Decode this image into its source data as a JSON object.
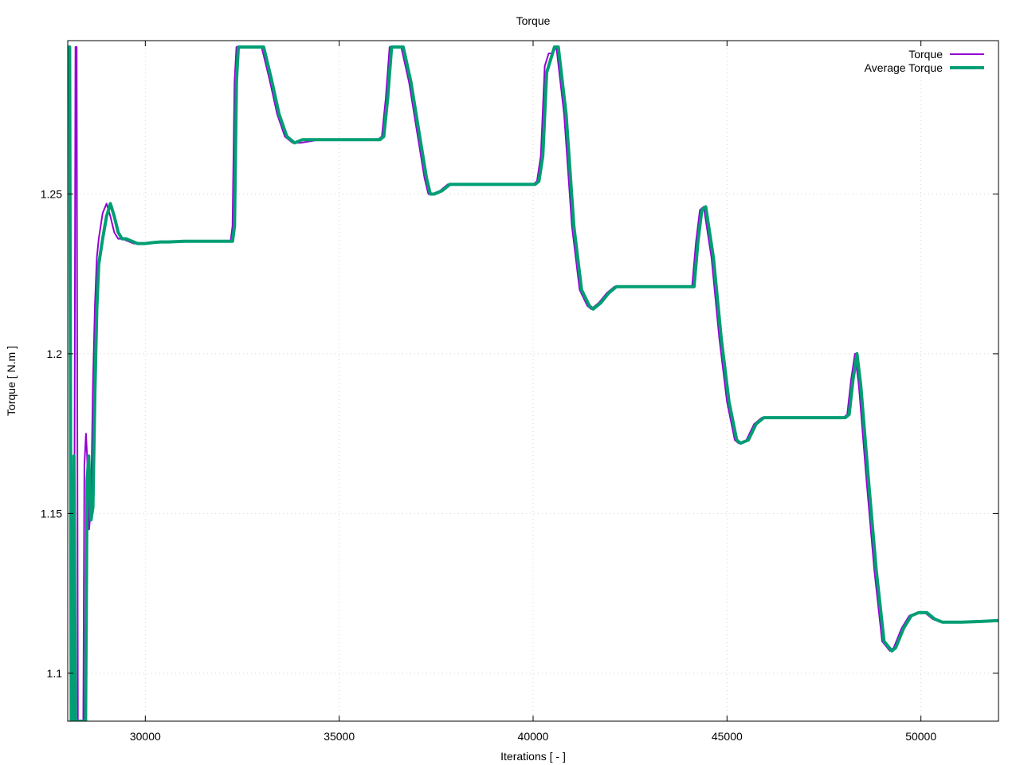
{
  "chart_data": {
    "type": "line",
    "title": "Torque",
    "xlabel": "Iterations [ - ]",
    "ylabel": "Torque [ N.m ]",
    "xlim": [
      28000,
      52000
    ],
    "ylim": [
      1.085,
      1.298
    ],
    "x_ticks": [
      30000,
      35000,
      40000,
      45000,
      50000
    ],
    "y_ticks": [
      1.1,
      1.15,
      1.2,
      1.25
    ],
    "y_tick_labels": [
      "1.1",
      "1.15",
      "1.2",
      "1.25"
    ],
    "grid": true,
    "legend": "top-right",
    "series": [
      {
        "name": "Torque",
        "color": "#9400d3",
        "x": [
          28000,
          28030,
          28060,
          28100,
          28130,
          28160,
          28200,
          28230,
          28260,
          28300,
          28330,
          28360,
          28400,
          28430,
          28470,
          28500,
          28550,
          28600,
          28650,
          28700,
          28750,
          28800,
          28900,
          29000,
          29100,
          29200,
          29300,
          29400,
          29500,
          29600,
          29700,
          29800,
          30000,
          30200,
          30400,
          30600,
          31000,
          31500,
          32000,
          32200,
          32250,
          32300,
          32350,
          32400,
          32600,
          32800,
          33000,
          33200,
          33400,
          33600,
          33800,
          34000,
          34500,
          35000,
          35500,
          36000,
          36100,
          36200,
          36300,
          36400,
          36500,
          36600,
          36800,
          37000,
          37200,
          37300,
          37400,
          37600,
          37800,
          38000,
          38500,
          39000,
          39500,
          40000,
          40100,
          40200,
          40300,
          40400,
          40500,
          40600,
          40800,
          41000,
          41200,
          41400,
          41500,
          41700,
          41900,
          42100,
          43000,
          44000,
          44100,
          44200,
          44300,
          44400,
          44600,
          44800,
          45000,
          45200,
          45300,
          45500,
          45700,
          45900,
          46100,
          47000,
          48000,
          48100,
          48200,
          48300,
          48400,
          48600,
          48800,
          49000,
          49200,
          49300,
          49500,
          49700,
          49900,
          50100,
          50300,
          50500,
          50700,
          51000,
          51500,
          52000
        ],
        "y": [
          1.296,
          1.296,
          1.296,
          1.085,
          1.085,
          1.085,
          1.296,
          1.296,
          1.085,
          1.085,
          1.085,
          1.085,
          1.085,
          1.165,
          1.175,
          1.168,
          1.145,
          1.152,
          1.19,
          1.215,
          1.23,
          1.236,
          1.244,
          1.247,
          1.243,
          1.238,
          1.236,
          1.236,
          1.2355,
          1.235,
          1.2345,
          1.2345,
          1.2345,
          1.2348,
          1.235,
          1.235,
          1.2352,
          1.2352,
          1.2352,
          1.2352,
          1.24,
          1.285,
          1.296,
          1.296,
          1.296,
          1.296,
          1.296,
          1.286,
          1.275,
          1.268,
          1.266,
          1.266,
          1.267,
          1.267,
          1.267,
          1.267,
          1.268,
          1.28,
          1.296,
          1.296,
          1.296,
          1.296,
          1.285,
          1.27,
          1.255,
          1.25,
          1.25,
          1.251,
          1.253,
          1.253,
          1.253,
          1.253,
          1.253,
          1.253,
          1.254,
          1.262,
          1.29,
          1.294,
          1.294,
          1.296,
          1.275,
          1.24,
          1.22,
          1.215,
          1.214,
          1.216,
          1.219,
          1.221,
          1.221,
          1.221,
          1.221,
          1.235,
          1.245,
          1.246,
          1.23,
          1.205,
          1.185,
          1.173,
          1.172,
          1.173,
          1.178,
          1.18,
          1.18,
          1.18,
          1.18,
          1.181,
          1.192,
          1.2,
          1.19,
          1.16,
          1.132,
          1.11,
          1.107,
          1.108,
          1.114,
          1.118,
          1.119,
          1.119,
          1.117,
          1.116,
          1.116,
          1.116,
          1.1162,
          1.1165
        ]
      },
      {
        "name": "Average Torque",
        "color": "#009e73",
        "x": [
          28000,
          28050,
          28090,
          28130,
          28160,
          28200,
          28250,
          28300,
          28340,
          28380,
          28420,
          28460,
          28500,
          28540,
          28600,
          28650,
          28700,
          28750,
          28800,
          28900,
          29000,
          29100,
          29200,
          29300,
          29400,
          29500,
          29600,
          29700,
          29800,
          30000,
          30200,
          30400,
          30600,
          31000,
          31500,
          32000,
          32250,
          32300,
          32350,
          32400,
          32450,
          32650,
          32850,
          33050,
          33250,
          33450,
          33650,
          33850,
          34050,
          34550,
          35050,
          35550,
          36050,
          36150,
          36250,
          36350,
          36450,
          36550,
          36650,
          36850,
          37050,
          37250,
          37350,
          37450,
          37650,
          37850,
          38050,
          38550,
          39050,
          39550,
          40050,
          40150,
          40250,
          40350,
          40450,
          40550,
          40650,
          40850,
          41050,
          41250,
          41450,
          41550,
          41750,
          41950,
          42150,
          43050,
          44050,
          44150,
          44250,
          44350,
          44450,
          44650,
          44850,
          45050,
          45250,
          45350,
          45550,
          45750,
          45950,
          46150,
          47050,
          48050,
          48150,
          48250,
          48350,
          48450,
          48650,
          48850,
          49050,
          49250,
          49350,
          49550,
          49750,
          49950,
          50150,
          50350,
          50550,
          50750,
          51050,
          51550,
          52000
        ],
        "y": [
          1.296,
          1.296,
          1.085,
          1.085,
          1.168,
          1.085,
          1.085,
          1.085,
          1.085,
          1.085,
          1.085,
          1.085,
          1.16,
          1.168,
          1.148,
          1.152,
          1.188,
          1.214,
          1.228,
          1.236,
          1.243,
          1.247,
          1.243,
          1.238,
          1.236,
          1.236,
          1.2355,
          1.235,
          1.2345,
          1.2345,
          1.2348,
          1.235,
          1.235,
          1.2352,
          1.2352,
          1.2352,
          1.2352,
          1.24,
          1.285,
          1.296,
          1.296,
          1.296,
          1.296,
          1.296,
          1.286,
          1.275,
          1.268,
          1.266,
          1.267,
          1.267,
          1.267,
          1.267,
          1.267,
          1.268,
          1.28,
          1.296,
          1.296,
          1.296,
          1.296,
          1.285,
          1.27,
          1.255,
          1.25,
          1.25,
          1.251,
          1.253,
          1.253,
          1.253,
          1.253,
          1.253,
          1.253,
          1.254,
          1.262,
          1.288,
          1.292,
          1.296,
          1.296,
          1.275,
          1.24,
          1.22,
          1.215,
          1.214,
          1.216,
          1.219,
          1.221,
          1.221,
          1.221,
          1.221,
          1.235,
          1.245,
          1.246,
          1.23,
          1.205,
          1.185,
          1.173,
          1.172,
          1.173,
          1.178,
          1.18,
          1.18,
          1.18,
          1.18,
          1.181,
          1.192,
          1.2,
          1.19,
          1.16,
          1.132,
          1.11,
          1.107,
          1.108,
          1.114,
          1.118,
          1.119,
          1.119,
          1.117,
          1.116,
          1.116,
          1.116,
          1.1162,
          1.1165
        ]
      }
    ]
  }
}
